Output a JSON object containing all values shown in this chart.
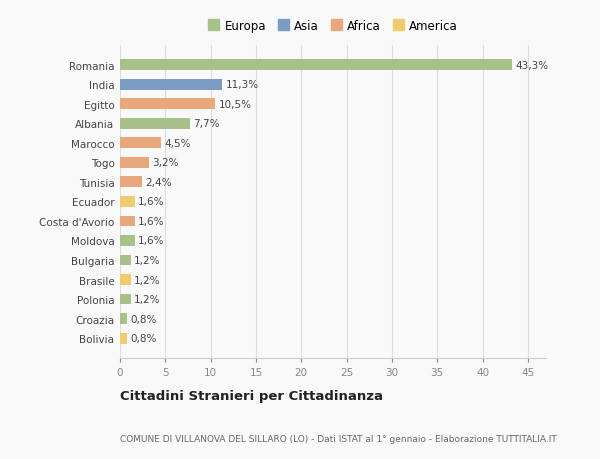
{
  "countries": [
    "Romania",
    "India",
    "Egitto",
    "Albania",
    "Marocco",
    "Togo",
    "Tunisia",
    "Ecuador",
    "Costa d'Avorio",
    "Moldova",
    "Bulgaria",
    "Brasile",
    "Polonia",
    "Croazia",
    "Bolivia"
  ],
  "values": [
    43.3,
    11.3,
    10.5,
    7.7,
    4.5,
    3.2,
    2.4,
    1.6,
    1.6,
    1.6,
    1.2,
    1.2,
    1.2,
    0.8,
    0.8
  ],
  "labels": [
    "43,3%",
    "11,3%",
    "10,5%",
    "7,7%",
    "4,5%",
    "3,2%",
    "2,4%",
    "1,6%",
    "1,6%",
    "1,6%",
    "1,2%",
    "1,2%",
    "1,2%",
    "0,8%",
    "0,8%"
  ],
  "colors": [
    "#a8c08a",
    "#7b9dc4",
    "#e8a87c",
    "#a8c08a",
    "#e8a87c",
    "#e8a87c",
    "#e8a87c",
    "#f0cc6e",
    "#e8a87c",
    "#a8c08a",
    "#a8c08a",
    "#f0cc6e",
    "#a8c08a",
    "#a8c08a",
    "#f0cc6e"
  ],
  "legend_labels": [
    "Europa",
    "Asia",
    "Africa",
    "America"
  ],
  "legend_colors": [
    "#a8c08a",
    "#7b9dc4",
    "#e8a87c",
    "#f0cc6e"
  ],
  "title": "Cittadini Stranieri per Cittadinanza",
  "subtitle": "COMUNE DI VILLANOVA DEL SILLARO (LO) - Dati ISTAT al 1° gennaio - Elaborazione TUTTITALIA.IT",
  "xlim": [
    0,
    47
  ],
  "xticks": [
    0,
    5,
    10,
    15,
    20,
    25,
    30,
    35,
    40,
    45
  ],
  "bg_color": "#f9f9f9",
  "grid_color": "#dddddd",
  "bar_height": 0.55,
  "label_fontsize": 7.5,
  "ytick_fontsize": 7.5,
  "xtick_fontsize": 7.5,
  "legend_fontsize": 8.5,
  "title_fontsize": 9.5,
  "subtitle_fontsize": 6.5
}
